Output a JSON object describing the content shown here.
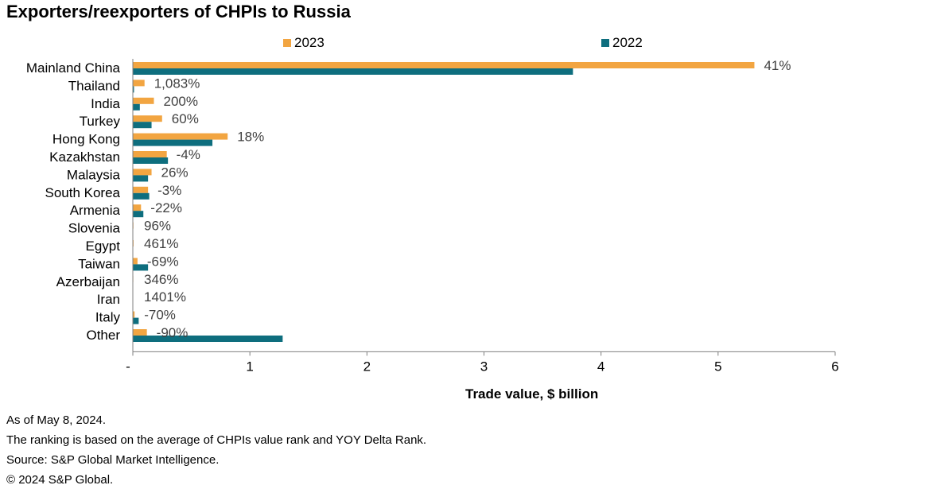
{
  "chart_data": {
    "type": "bar",
    "orientation": "horizontal",
    "title": "Exporters/reexporters of CHPIs to Russia",
    "xlabel": "Trade value, $ billion",
    "ylabel": "",
    "xlim": [
      0,
      6
    ],
    "x_ticks": [
      "-",
      "1",
      "2",
      "3",
      "4",
      "5",
      "6"
    ],
    "legend_position": "top",
    "grid": false,
    "categories": [
      "Mainland China",
      "Thailand",
      "India",
      "Turkey",
      "Hong Kong",
      "Kazakhstan",
      "Malaysia",
      "South Korea",
      "Armenia",
      "Slovenia",
      "Egypt",
      "Taiwan",
      "Azerbaijan",
      "Iran",
      "Italy",
      "Other"
    ],
    "series": [
      {
        "name": "2023",
        "color": "#F2A541",
        "values": [
          5.31,
          0.1,
          0.18,
          0.25,
          0.81,
          0.29,
          0.16,
          0.13,
          0.07,
          0.005,
          0.006,
          0.04,
          0.004,
          0.003,
          0.015,
          0.12
        ]
      },
      {
        "name": "2022",
        "color": "#0E6E7E",
        "values": [
          3.76,
          0.01,
          0.06,
          0.16,
          0.68,
          0.3,
          0.13,
          0.14,
          0.09,
          0.003,
          0.001,
          0.13,
          0.001,
          0.0002,
          0.05,
          1.28
        ]
      }
    ],
    "data_labels": [
      "41%",
      "1,083%",
      "200%",
      "60%",
      "18%",
      "-4%",
      "26%",
      "-3%",
      "-22%",
      "96%",
      "461%",
      "-69%",
      "346%",
      "1401%",
      "-70%",
      "-90%"
    ]
  },
  "footnotes": [
    "As of May 8, 2024.",
    "The ranking is based on the average of CHPIs value rank and YOY Delta Rank.",
    "Source: S&P Global Market Intelligence.",
    "© 2024 S&P Global."
  ]
}
